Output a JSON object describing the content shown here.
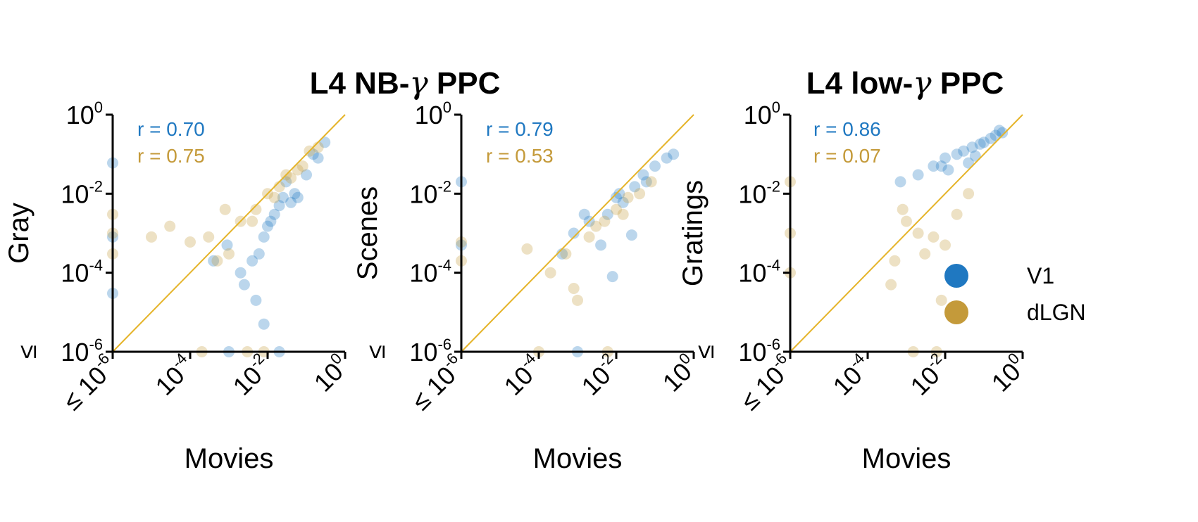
{
  "colors": {
    "V1": "#1f78c1",
    "dLGN": "#c49a3a",
    "diagonal": "#e5b42a",
    "axis": "#000000"
  },
  "titles": [
    "L4 NB-γ PPC",
    "L4 low-γ PPC"
  ],
  "legend": [
    {
      "label": "V1",
      "color": "#1f78c1"
    },
    {
      "label": "dLGN",
      "color": "#c49a3a"
    }
  ],
  "tick_labels": {
    "le": "≤",
    "base": "10",
    "exps": [
      "-6",
      "-4",
      "-2",
      "0"
    ]
  },
  "chart_data": [
    {
      "type": "scatter",
      "title": "L4 NB-γ PPC",
      "xlabel": "Movies",
      "ylabel": "Gray",
      "xscale": "log",
      "yscale": "log",
      "xlim": [
        1e-06,
        1
      ],
      "ylim": [
        1e-06,
        1
      ],
      "xticks": [
        "≤ 10^-6",
        "10^-4",
        "10^-2",
        "10^0"
      ],
      "yticks": [
        "≤ 10^-6",
        "10^-4",
        "10^-2",
        "10^0"
      ],
      "diagonal": true,
      "annotations": [
        {
          "text": "r = 0.70",
          "series": "V1"
        },
        {
          "text": "r = 0.75",
          "series": "dLGN"
        }
      ],
      "series": [
        {
          "name": "V1",
          "x": [
            0.012,
            0.02,
            0.008,
            0.05,
            0.1,
            0.3,
            0.006,
            0.015,
            0.03,
            0.004,
            0.2,
            0.06,
            0.0025,
            0.01,
            0.04,
            0.0009,
            0.0004,
            0.005,
            0.15,
            0.025,
            0.002,
            0.008,
            1e-06,
            1e-06,
            1e-06,
            0.001,
            0.02
          ],
          "y": [
            0.002,
            0.005,
            0.0008,
            0.01,
            0.03,
            0.2,
            0.0003,
            0.003,
            0.02,
            0.0002,
            0.08,
            0.008,
            5e-05,
            0.0015,
            0.006,
            0.0005,
            0.0002,
            2e-05,
            0.1,
            0.008,
            0.0001,
            5e-06,
            0.06,
            0.0008,
            3e-05,
            1e-06,
            1e-06
          ]
        },
        {
          "name": "dLGN",
          "x": [
            0.01,
            0.03,
            0.005,
            0.08,
            0.12,
            0.0008,
            0.002,
            0.0003,
            0.02,
            0.06,
            0.0001,
            0.004,
            0.015,
            0.2,
            0.0005,
            0.04,
            0.001,
            1e-05,
            1e-06,
            1e-06,
            1e-06,
            0.0002,
            0.003,
            0.008,
            3e-05
          ],
          "y": [
            0.01,
            0.03,
            0.004,
            0.05,
            0.12,
            0.004,
            0.002,
            0.0008,
            0.015,
            0.04,
            0.0006,
            0.002,
            0.008,
            0.15,
            0.0002,
            0.025,
            0.0003,
            0.0008,
            0.001,
            0.003,
            0.0003,
            1e-06,
            1e-06,
            1e-06,
            0.0015
          ]
        }
      ]
    },
    {
      "type": "scatter",
      "title": "",
      "xlabel": "Movies",
      "ylabel": "Scenes",
      "xscale": "log",
      "yscale": "log",
      "xlim": [
        1e-06,
        1
      ],
      "ylim": [
        1e-06,
        1
      ],
      "xticks": [
        "≤ 10^-6",
        "10^-4",
        "10^-2",
        "10^0"
      ],
      "yticks": [
        "≤ 10^-6",
        "10^-4",
        "10^-2",
        "10^0"
      ],
      "diagonal": true,
      "annotations": [
        {
          "text": "r = 0.79",
          "series": "V1"
        },
        {
          "text": "r = 0.53",
          "series": "dLGN"
        }
      ],
      "series": [
        {
          "name": "V1",
          "x": [
            0.01,
            0.03,
            0.05,
            0.1,
            0.2,
            0.006,
            0.002,
            0.015,
            0.0008,
            0.004,
            0.3,
            0.06,
            0.0004,
            0.025,
            0.008,
            1e-06,
            1e-06,
            0.001,
            0.012,
            0.0015
          ],
          "y": [
            0.008,
            0.015,
            0.03,
            0.05,
            0.08,
            0.003,
            0.002,
            0.006,
            0.001,
            0.0005,
            0.1,
            0.02,
            0.0003,
            0.0009,
            8e-05,
            0.02,
            0.0005,
            1e-06,
            0.01,
            0.003
          ]
        },
        {
          "name": "dLGN",
          "x": [
            0.005,
            0.01,
            0.02,
            0.002,
            0.0005,
            0.0002,
            0.04,
            0.08,
            0.001,
            0.003,
            0.015,
            5e-05,
            1e-06,
            1e-06,
            0.0001,
            0.006,
            0.0008
          ],
          "y": [
            0.002,
            0.004,
            0.008,
            0.0008,
            0.0003,
            0.0001,
            0.01,
            0.02,
            2e-05,
            0.0015,
            0.003,
            0.0004,
            0.0006,
            0.0002,
            1e-06,
            1e-06,
            4e-05
          ]
        }
      ]
    },
    {
      "type": "scatter",
      "title": "L4 low-γ PPC",
      "xlabel": "Movies",
      "ylabel": "Gratings",
      "xscale": "log",
      "yscale": "log",
      "xlim": [
        1e-06,
        1
      ],
      "ylim": [
        1e-06,
        1
      ],
      "xticks": [
        "≤ 10^-6",
        "10^-4",
        "10^-2",
        "10^0"
      ],
      "yticks": [
        "≤ 10^-6",
        "10^-4",
        "10^-2",
        "10^0"
      ],
      "diagonal": true,
      "annotations": [
        {
          "text": "r = 0.86",
          "series": "V1"
        },
        {
          "text": "r = 0.07",
          "series": "dLGN"
        }
      ],
      "series": [
        {
          "name": "V1",
          "x": [
            0.01,
            0.02,
            0.05,
            0.1,
            0.2,
            0.3,
            0.005,
            0.03,
            0.08,
            0.15,
            0.002,
            0.04,
            0.012,
            0.25,
            0.0007,
            0.06,
            0.008
          ],
          "y": [
            0.08,
            0.1,
            0.15,
            0.2,
            0.3,
            0.35,
            0.05,
            0.12,
            0.18,
            0.25,
            0.03,
            0.06,
            0.04,
            0.4,
            0.02,
            0.09,
            0.05
          ]
        },
        {
          "name": "dLGN",
          "x": [
            0.001,
            0.002,
            0.005,
            0.01,
            0.02,
            0.003,
            0.0008,
            0.0005,
            0.008,
            0.015,
            0.04,
            1e-06,
            1e-06,
            1e-06,
            0.0015,
            0.006,
            0.0004
          ],
          "y": [
            0.002,
            0.001,
            0.0008,
            0.0005,
            0.003,
            0.0003,
            0.004,
            0.0002,
            2e-05,
            0.0001,
            0.01,
            0.02,
            0.001,
            0.0001,
            1e-06,
            1e-06,
            5e-05
          ]
        }
      ]
    }
  ]
}
